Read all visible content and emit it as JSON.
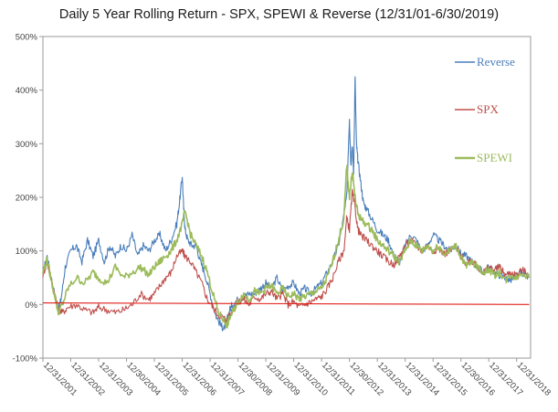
{
  "chart_data": {
    "type": "line",
    "title": "Daily 5 Year Rolling Return - SPX, SPEWI & Reverse (12/31/01-6/30/2019)",
    "xlabel": "",
    "ylabel": "",
    "ylim": [
      -100,
      500
    ],
    "y_ticks": [
      "500%",
      "400%",
      "300%",
      "200%",
      "100%",
      "0%",
      "-100%"
    ],
    "y_tick_values": [
      500,
      400,
      300,
      200,
      100,
      0,
      -100
    ],
    "x_ticks": [
      "12/31/2001",
      "12/31/2002",
      "12/31/2003",
      "12/30/2004",
      "12/31/2005",
      "12/31/2006",
      "12/31/2007",
      "12/30/2008",
      "12/31/2009",
      "12/31/2010",
      "12/31/2011",
      "12/30/2012",
      "12/31/2013",
      "12/31/2014",
      "12/31/2015",
      "12/30/2016",
      "12/31/2017",
      "12/31/2018"
    ],
    "x_tick_years": [
      2002,
      2003,
      2004,
      2005,
      2006,
      2007,
      2008,
      2009,
      2010,
      2011,
      2012,
      2013,
      2014,
      2015,
      2016,
      2017,
      2018,
      2019
    ],
    "x_range_years": [
      2002,
      2019.5
    ],
    "grid": false,
    "legend_position": "top-right",
    "series": [
      {
        "name": "Reverse",
        "color": "#4a7ebb",
        "x": [
          2002.0,
          2002.15,
          2002.3,
          2002.45,
          2002.55,
          2002.65,
          2002.8,
          2003.0,
          2003.2,
          2003.4,
          2003.6,
          2003.8,
          2004.0,
          2004.2,
          2004.4,
          2004.6,
          2004.8,
          2005.0,
          2005.2,
          2005.4,
          2005.6,
          2005.8,
          2006.0,
          2006.2,
          2006.4,
          2006.6,
          2006.8,
          2006.9,
          2007.0,
          2007.05,
          2007.1,
          2007.2,
          2007.35,
          2007.5,
          2007.65,
          2007.8,
          2008.0,
          2008.2,
          2008.4,
          2008.5,
          2008.6,
          2008.7,
          2008.8,
          2009.0,
          2009.2,
          2009.4,
          2009.6,
          2009.8,
          2010.0,
          2010.2,
          2010.4,
          2010.6,
          2010.8,
          2011.0,
          2011.2,
          2011.4,
          2011.6,
          2011.8,
          2012.0,
          2012.2,
          2012.4,
          2012.6,
          2012.75,
          2012.9,
          2013.0,
          2013.05,
          2013.1,
          2013.15,
          2013.2,
          2013.25,
          2013.3,
          2013.4,
          2013.5,
          2013.6,
          2013.8,
          2014.0,
          2014.2,
          2014.4,
          2014.6,
          2014.8,
          2015.0,
          2015.2,
          2015.4,
          2015.6,
          2015.8,
          2016.0,
          2016.2,
          2016.4,
          2016.6,
          2016.8,
          2017.0,
          2017.2,
          2017.4,
          2017.6,
          2017.8,
          2018.0,
          2018.2,
          2018.4,
          2018.6,
          2018.8,
          2019.0,
          2019.2,
          2019.45
        ],
        "values": [
          60,
          90,
          50,
          10,
          -10,
          10,
          70,
          100,
          110,
          80,
          120,
          90,
          120,
          80,
          110,
          90,
          110,
          100,
          130,
          90,
          110,
          100,
          120,
          130,
          100,
          120,
          150,
          190,
          240,
          180,
          140,
          120,
          110,
          110,
          80,
          60,
          20,
          -20,
          -40,
          -45,
          -30,
          -10,
          0,
          10,
          15,
          20,
          20,
          30,
          40,
          30,
          50,
          25,
          35,
          40,
          20,
          30,
          20,
          30,
          40,
          60,
          80,
          110,
          150,
          200,
          350,
          260,
          300,
          240,
          430,
          300,
          270,
          230,
          190,
          180,
          160,
          140,
          130,
          120,
          90,
          80,
          110,
          130,
          120,
          100,
          110,
          130,
          120,
          110,
          100,
          110,
          95,
          90,
          80,
          70,
          60,
          70,
          60,
          55,
          50,
          45,
          55,
          60,
          50
        ]
      },
      {
        "name": "SPX",
        "color": "#c0504d",
        "x": [
          2002.0,
          2002.15,
          2002.3,
          2002.45,
          2002.55,
          2002.7,
          2002.9,
          2003.2,
          2003.5,
          2003.8,
          2004.0,
          2004.3,
          2004.6,
          2004.9,
          2005.2,
          2005.5,
          2005.8,
          2006.0,
          2006.2,
          2006.4,
          2006.6,
          2006.8,
          2007.0,
          2007.1,
          2007.3,
          2007.5,
          2007.7,
          2007.9,
          2008.1,
          2008.3,
          2008.5,
          2008.6,
          2008.7,
          2008.85,
          2009.0,
          2009.2,
          2009.4,
          2009.6,
          2009.8,
          2010.0,
          2010.2,
          2010.4,
          2010.6,
          2010.8,
          2011.0,
          2011.2,
          2011.4,
          2011.6,
          2011.8,
          2012.0,
          2012.2,
          2012.4,
          2012.6,
          2012.8,
          2012.9,
          2013.0,
          2013.1,
          2013.2,
          2013.3,
          2013.4,
          2013.6,
          2013.8,
          2014.0,
          2014.2,
          2014.4,
          2014.6,
          2014.8,
          2015.0,
          2015.2,
          2015.4,
          2015.6,
          2015.8,
          2016.0,
          2016.2,
          2016.4,
          2016.6,
          2016.8,
          2017.0,
          2017.2,
          2017.4,
          2017.6,
          2017.8,
          2018.0,
          2018.2,
          2018.4,
          2018.6,
          2018.8,
          2019.0,
          2019.2,
          2019.45
        ],
        "values": [
          55,
          80,
          45,
          15,
          -10,
          -15,
          -5,
          0,
          -10,
          -15,
          -5,
          -10,
          -15,
          -10,
          0,
          20,
          10,
          20,
          35,
          50,
          60,
          90,
          100,
          90,
          80,
          60,
          40,
          10,
          -5,
          -20,
          -25,
          -30,
          -20,
          -5,
          5,
          10,
          0,
          15,
          10,
          20,
          25,
          10,
          20,
          0,
          5,
          -5,
          0,
          5,
          10,
          15,
          30,
          50,
          80,
          100,
          160,
          140,
          210,
          180,
          140,
          130,
          120,
          110,
          100,
          90,
          80,
          75,
          90,
          110,
          120,
          110,
          100,
          110,
          100,
          105,
          95,
          100,
          110,
          90,
          75,
          80,
          70,
          60,
          70,
          65,
          70,
          55,
          60,
          55,
          65,
          55
        ]
      },
      {
        "name": "SPEWI",
        "color": "#9bbb59",
        "x": [
          2002.0,
          2002.15,
          2002.3,
          2002.45,
          2002.55,
          2002.7,
          2002.9,
          2003.2,
          2003.5,
          2003.8,
          2004.0,
          2004.3,
          2004.6,
          2004.9,
          2005.2,
          2005.5,
          2005.8,
          2006.0,
          2006.2,
          2006.4,
          2006.6,
          2006.8,
          2007.0,
          2007.1,
          2007.3,
          2007.5,
          2007.7,
          2007.9,
          2008.1,
          2008.3,
          2008.5,
          2008.6,
          2008.7,
          2008.85,
          2009.0,
          2009.2,
          2009.4,
          2009.6,
          2009.8,
          2010.0,
          2010.2,
          2010.4,
          2010.6,
          2010.8,
          2011.0,
          2011.2,
          2011.4,
          2011.6,
          2011.8,
          2012.0,
          2012.2,
          2012.4,
          2012.6,
          2012.8,
          2012.9,
          2013.0,
          2013.1,
          2013.2,
          2013.3,
          2013.4,
          2013.6,
          2013.8,
          2014.0,
          2014.2,
          2014.4,
          2014.6,
          2014.8,
          2015.0,
          2015.2,
          2015.4,
          2015.6,
          2015.8,
          2016.0,
          2016.2,
          2016.4,
          2016.6,
          2016.8,
          2017.0,
          2017.2,
          2017.4,
          2017.6,
          2017.8,
          2018.0,
          2018.2,
          2018.4,
          2018.6,
          2018.8,
          2019.0,
          2019.2,
          2019.45
        ],
        "values": [
          60,
          85,
          45,
          10,
          -15,
          0,
          30,
          50,
          40,
          60,
          50,
          40,
          70,
          50,
          60,
          70,
          55,
          70,
          80,
          90,
          100,
          120,
          150,
          175,
          130,
          110,
          90,
          60,
          20,
          -15,
          -30,
          -40,
          -25,
          -10,
          5,
          20,
          10,
          25,
          20,
          30,
          35,
          20,
          30,
          15,
          20,
          10,
          15,
          20,
          25,
          30,
          50,
          80,
          120,
          160,
          260,
          200,
          250,
          200,
          170,
          160,
          150,
          140,
          120,
          110,
          100,
          90,
          80,
          100,
          120,
          110,
          100,
          110,
          100,
          110,
          95,
          100,
          110,
          90,
          70,
          80,
          70,
          60,
          65,
          55,
          60,
          45,
          55,
          50,
          60,
          50
        ]
      },
      {
        "name": "",
        "color": "#e0201a",
        "x": [
          2002.0,
          2019.45
        ],
        "values": [
          3,
          0
        ]
      }
    ]
  }
}
